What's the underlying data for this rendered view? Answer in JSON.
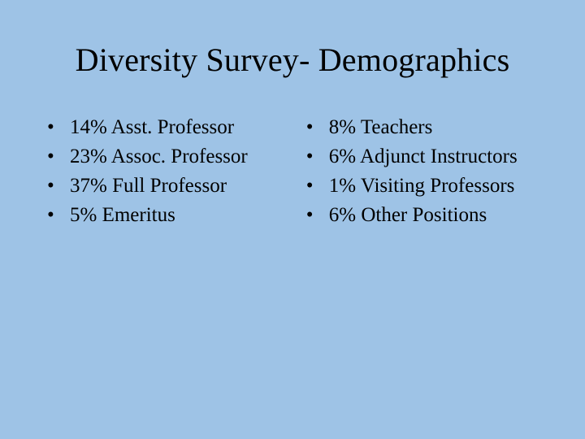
{
  "background_color": "#9ec3e6",
  "text_color": "#000000",
  "font_family": "Times New Roman, serif",
  "title": {
    "text": "Diversity Survey- Demographics",
    "fontsize": 40
  },
  "bullet_char": "•",
  "body_fontsize": 25,
  "columns": {
    "left": {
      "items": [
        "14% Asst. Professor",
        "23% Assoc. Professor",
        "37% Full Professor",
        "5% Emeritus"
      ]
    },
    "right": {
      "items": [
        "8% Teachers",
        "6% Adjunct Instructors",
        "1% Visiting Professors",
        "6% Other Positions"
      ]
    }
  }
}
